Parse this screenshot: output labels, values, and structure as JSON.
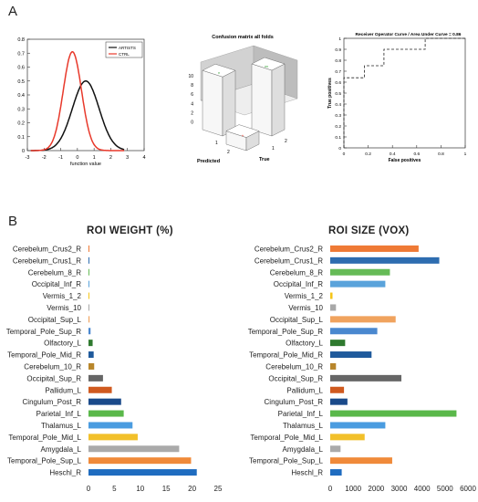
{
  "panel_labels": {
    "a": "A",
    "b": "B"
  },
  "chart_data": [
    {
      "id": "density",
      "type": "line",
      "xlabel": "function value",
      "xlim": [
        -3,
        4
      ],
      "ylim": [
        0,
        0.8
      ],
      "xticks": [
        -3,
        -2,
        -1,
        0,
        1,
        2,
        3,
        4
      ],
      "yticks": [
        0,
        0.1,
        0.2,
        0.3,
        0.4,
        0.5,
        0.6,
        0.7,
        0.8
      ],
      "legend_position": "top-right",
      "series": [
        {
          "name": "ARTISTS",
          "color": "#111111",
          "mean": 0.5,
          "sd": 0.8,
          "peak": 0.5
        },
        {
          "name": "CTRL",
          "color": "#e8392b",
          "mean": -0.3,
          "sd": 0.55,
          "peak": 0.71
        }
      ]
    },
    {
      "id": "confusion",
      "type": "bar3d",
      "title": "Confusion matrix all folds",
      "xlabel": "Predicted",
      "ylabel": "True",
      "zticks": [
        0,
        2,
        4,
        6,
        8,
        10
      ],
      "axis_ticks": [
        "1",
        "2"
      ],
      "cells": [
        {
          "predicted": 1,
          "true": 1,
          "value": 9
        },
        {
          "predicted": 2,
          "true": 2,
          "value": 10
        },
        {
          "predicted": 1,
          "true": 2,
          "value": 2
        },
        {
          "predicted": 2,
          "true": 1,
          "value": 0
        }
      ]
    },
    {
      "id": "roc",
      "type": "line",
      "title": "Receiver Operator Curve / Area Under Curve = 0.86",
      "xlabel": "False positives",
      "ylabel": "True positives",
      "xlim": [
        0,
        1
      ],
      "ylim": [
        0,
        1
      ],
      "xticks": [
        0,
        0.2,
        0.4,
        0.6,
        0.8,
        1
      ],
      "yticks": [
        0,
        0.1,
        0.2,
        0.3,
        0.4,
        0.5,
        0.6,
        0.7,
        0.8,
        0.9,
        1
      ],
      "x": [
        0,
        0,
        0.17,
        0.17,
        0.33,
        0.33,
        0.67,
        0.67,
        1
      ],
      "y": [
        0,
        0.64,
        0.64,
        0.75,
        0.75,
        0.9,
        0.9,
        1,
        1
      ]
    },
    {
      "id": "roi_weight",
      "type": "bar",
      "orientation": "horizontal",
      "title": "ROI WEIGHT (%)",
      "xlim": [
        0,
        25
      ],
      "xticks": [
        0,
        5,
        10,
        15,
        20,
        25
      ],
      "categories": [
        "Cerebelum_Crus2_R",
        "Cerebelum_Crus1_R",
        "Cerebelum_8_R",
        "Occipital_Inf_R",
        "Vermis_1_2",
        "Vermis_10",
        "Occipital_Sup_L",
        "Temporal_Pole_Sup_R",
        "Olfactory_L",
        "Temporal_Pole_Mid_R",
        "Cerebelum_10_R",
        "Occipital_Sup_R",
        "Pallidum_L",
        "Cingulum_Post_R",
        "Parietal_Inf_L",
        "Thalamus_L",
        "Temporal_Pole_Mid_L",
        "Amygdala_L",
        "Temporal_Pole_Sup_L",
        "Heschl_R"
      ],
      "values": [
        0.1,
        0.1,
        0.15,
        0.15,
        0.1,
        0.1,
        0.2,
        0.4,
        0.8,
        1.0,
        1.1,
        2.8,
        4.5,
        6.3,
        6.8,
        8.5,
        9.5,
        17.5,
        19.8,
        20.9
      ],
      "colors": [
        "#ef7a35",
        "#2e6db0",
        "#66bb57",
        "#5aa3db",
        "#f5c518",
        "#a8a8a8",
        "#f0a35e",
        "#4a88cf",
        "#2f7a2f",
        "#1f5a9c",
        "#b8862b",
        "#666666",
        "#d05a1f",
        "#1a4a8a",
        "#5ab84a",
        "#4a9ce0",
        "#f2c02a",
        "#aaaaaa",
        "#f08a3a",
        "#1f6cc0"
      ]
    },
    {
      "id": "roi_size",
      "type": "bar",
      "orientation": "horizontal",
      "title": "ROI  SIZE (VOX)",
      "xlim": [
        0,
        6000
      ],
      "xticks": [
        0,
        1000,
        2000,
        3000,
        4000,
        5000,
        6000
      ],
      "categories": [
        "Cerebelum_Crus2_R",
        "Cerebelum_Crus1_R",
        "Cerebelum_8_R",
        "Occipital_Inf_R",
        "Vermis_1_2",
        "Vermis_10",
        "Occipital_Sup_L",
        "Temporal_Pole_Sup_R",
        "Olfactory_L",
        "Temporal_Pole_Mid_R",
        "Cerebelum_10_R",
        "Occipital_Sup_R",
        "Pallidum_L",
        "Cingulum_Post_R",
        "Parietal_Inf_L",
        "Thalamus_L",
        "Temporal_Pole_Mid_L",
        "Amygdala_L",
        "Temporal_Pole_Sup_L",
        "Heschl_R"
      ],
      "values": [
        3850,
        4750,
        2600,
        2400,
        100,
        250,
        2850,
        2050,
        650,
        1800,
        250,
        3100,
        600,
        750,
        5500,
        2400,
        1500,
        450,
        2700,
        500
      ],
      "colors": [
        "#ef7a35",
        "#2e6db0",
        "#66bb57",
        "#5aa3db",
        "#f5c518",
        "#a8a8a8",
        "#f0a35e",
        "#4a88cf",
        "#2f7a2f",
        "#1f5a9c",
        "#b8862b",
        "#666666",
        "#d05a1f",
        "#1a4a8a",
        "#5ab84a",
        "#4a9ce0",
        "#f2c02a",
        "#aaaaaa",
        "#f08a3a",
        "#1f6cc0"
      ]
    }
  ]
}
